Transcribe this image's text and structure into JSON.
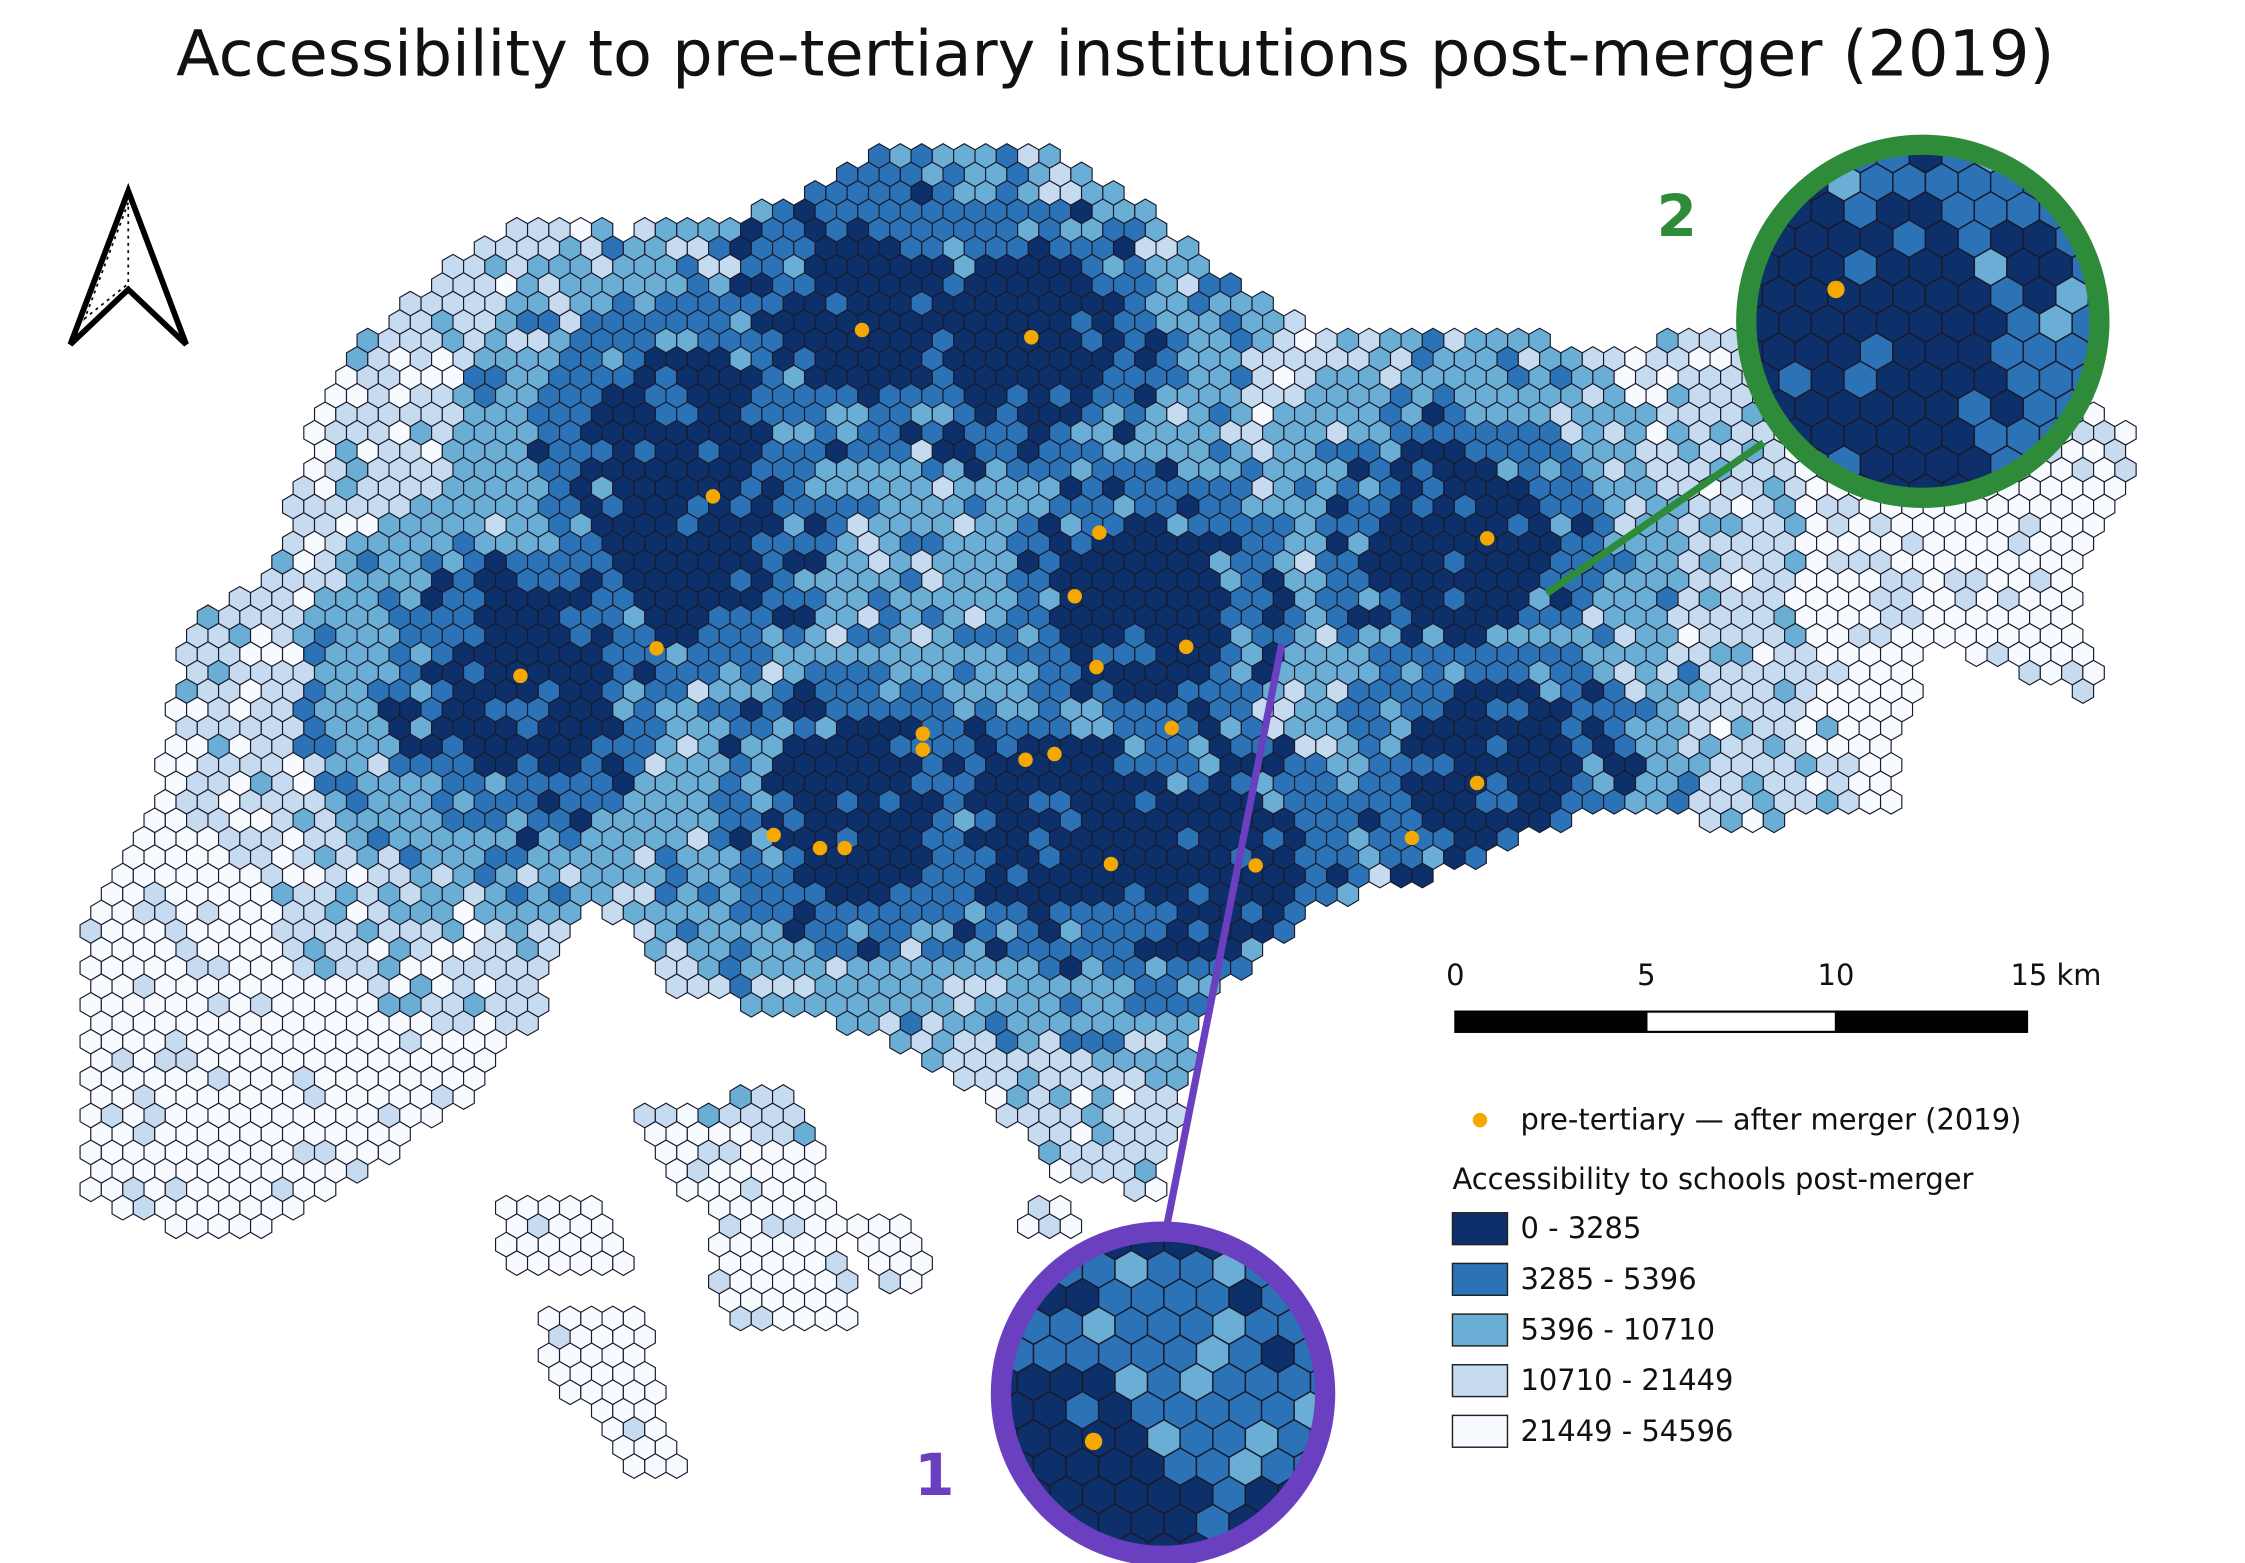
{
  "title": "Accessibility to pre-tertiary institutions post-merger (2019)",
  "scale_bar": {
    "labels": [
      "0",
      "5",
      "10",
      "15 km"
    ]
  },
  "legend": {
    "points": {
      "label": "pre-tertiary — after merger (2019)",
      "color": "#f5a800"
    },
    "title": "Accessibility to schools post-merger",
    "classes": [
      {
        "label": "0 - 3285",
        "color": "#0d2f6a"
      },
      {
        "label": "3285 - 5396",
        "color": "#2b73b6"
      },
      {
        "label": "5396 - 10710",
        "color": "#6aaed6"
      },
      {
        "label": "10710 - 21449",
        "color": "#c6dbef"
      },
      {
        "label": "21449 - 54596",
        "color": "#f7fbff"
      }
    ]
  },
  "callouts": [
    {
      "label": "1",
      "color": "#6a3fc0"
    },
    {
      "label": "2",
      "color": "#2e8b3a"
    }
  ]
}
